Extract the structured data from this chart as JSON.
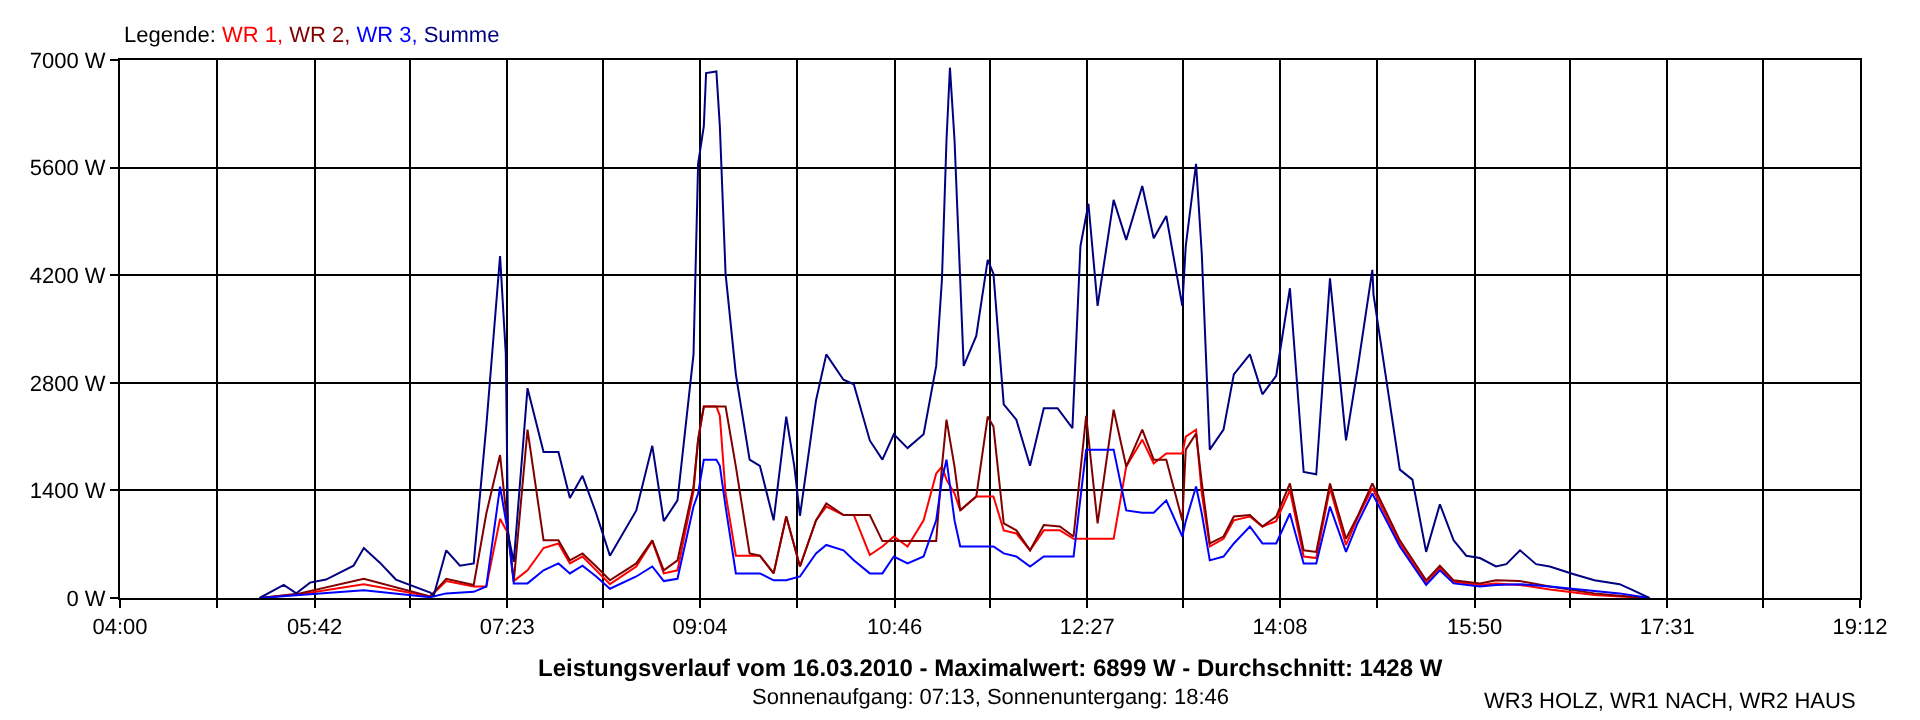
{
  "chart_data": {
    "type": "line",
    "title": "Leistungsverlauf vom 16.03.2010 - Maximalwert: 6899 W - Durchschnitt: 1428 W",
    "subtitle": "Sonnenaufgang: 07:13, Sonnenuntergang: 18:46",
    "legend_title": "Legende:",
    "legend": "top left",
    "grid": true,
    "marker": "none",
    "line_style": "solid",
    "annotations": [
      "WR3 HOLZ, WR1 NACH, WR2 HAUS"
    ],
    "xlim": [
      4,
      19.2
    ],
    "ylim": [
      0,
      7000
    ],
    "xticks": [
      {
        "value": 4,
        "label": "04:00"
      },
      {
        "value": 4.8444,
        "label": null
      },
      {
        "value": 5.7,
        "label": "05:42"
      },
      {
        "value": 6.5333,
        "label": null
      },
      {
        "value": 7.3833,
        "label": "07:23"
      },
      {
        "value": 8.2222,
        "label": null
      },
      {
        "value": 9.0667,
        "label": "09:04"
      },
      {
        "value": 9.9111,
        "label": null
      },
      {
        "value": 10.7667,
        "label": "10:46"
      },
      {
        "value": 11.6,
        "label": null
      },
      {
        "value": 12.45,
        "label": "12:27"
      },
      {
        "value": 13.2889,
        "label": null
      },
      {
        "value": 14.1333,
        "label": "14:08"
      },
      {
        "value": 14.9778,
        "label": null
      },
      {
        "value": 15.8333,
        "label": "15:50"
      },
      {
        "value": 16.6667,
        "label": null
      },
      {
        "value": 17.5167,
        "label": "17:31"
      },
      {
        "value": 18.3556,
        "label": null
      },
      {
        "value": 19.2,
        "label": "19:12"
      }
    ],
    "yticks": [
      {
        "value": 0,
        "label": "0 W"
      },
      {
        "value": 1400,
        "label": "1400 W"
      },
      {
        "value": 2800,
        "label": "2800 W"
      },
      {
        "value": 4200,
        "label": "4200 W"
      },
      {
        "value": 5600,
        "label": "5600 W"
      },
      {
        "value": 7000,
        "label": "7000 W"
      }
    ],
    "x": [
      5.22,
      5.57,
      6.13,
      6.71,
      6.85,
      7.09,
      7.2,
      7.32,
      7.39,
      7.44,
      7.56,
      7.7,
      7.83,
      7.93,
      8.04,
      8.16,
      8.28,
      8.51,
      8.65,
      8.75,
      8.87,
      9.01,
      9.05,
      9.1,
      9.21,
      9.24,
      9.29,
      9.38,
      9.5,
      9.59,
      9.71,
      9.82,
      9.94,
      10.08,
      10.17,
      10.32,
      10.41,
      10.55,
      10.66,
      10.76,
      10.88,
      11.02,
      11.13,
      11.18,
      11.22,
      11.29,
      11.34,
      11.48,
      11.58,
      11.63,
      11.72,
      11.83,
      11.95,
      12.07,
      12.21,
      12.33,
      12.44,
      12.54,
      12.68,
      12.79,
      12.93,
      13.03,
      13.14,
      13.28,
      13.31,
      13.4,
      13.45,
      13.52,
      13.64,
      13.73,
      13.87,
      13.98,
      14.1,
      14.22,
      14.34,
      14.45,
      14.57,
      14.71,
      14.81,
      14.94,
      15.18,
      15.41,
      15.53,
      15.65,
      15.88,
      16.02,
      16.23,
      16.49,
      16.88,
      17.1,
      17.36
    ],
    "series": [
      {
        "name": "WR 1,",
        "color": "#ff0000",
        "values": [
          0,
          50,
          180,
          20,
          220,
          150,
          150,
          1030,
          840,
          220,
          360,
          650,
          710,
          450,
          540,
          360,
          180,
          410,
          740,
          320,
          360,
          1390,
          2060,
          2490,
          2490,
          2370,
          1360,
          550,
          550,
          550,
          320,
          1060,
          410,
          1010,
          1190,
          1080,
          1080,
          560,
          670,
          800,
          670,
          1010,
          1620,
          1710,
          1540,
          1360,
          1140,
          1320,
          1320,
          1320,
          880,
          840,
          620,
          880,
          880,
          770,
          770,
          770,
          770,
          1710,
          2060,
          1750,
          1880,
          1880,
          2100,
          2190,
          1360,
          670,
          770,
          1010,
          1060,
          930,
          1000,
          1400,
          540,
          520,
          1430,
          690,
          1040,
          1430,
          710,
          190,
          390,
          210,
          170,
          190,
          170,
          110,
          40,
          20,
          0
        ]
      },
      {
        "name": "WR 2,",
        "color": "#800000",
        "values": [
          0,
          60,
          250,
          20,
          250,
          170,
          1100,
          1860,
          870,
          220,
          2190,
          750,
          750,
          490,
          580,
          410,
          230,
          450,
          750,
          360,
          490,
          1450,
          2060,
          2490,
          2490,
          2490,
          2490,
          1710,
          580,
          550,
          320,
          1060,
          410,
          1010,
          1230,
          1080,
          1080,
          1080,
          740,
          740,
          740,
          740,
          740,
          1710,
          2320,
          1710,
          1140,
          1320,
          2360,
          2230,
          970,
          880,
          620,
          950,
          930,
          800,
          2370,
          970,
          2450,
          1710,
          2190,
          1800,
          1800,
          1010,
          1930,
          2140,
          1500,
          710,
          800,
          1060,
          1080,
          930,
          1060,
          1490,
          620,
          600,
          1490,
          770,
          1060,
          1490,
          750,
          230,
          420,
          230,
          190,
          230,
          220,
          150,
          60,
          30,
          0
        ]
      },
      {
        "name": "WR 3,",
        "color": "#0000ff",
        "values": [
          0,
          40,
          100,
          10,
          60,
          80,
          150,
          1450,
          840,
          190,
          190,
          360,
          450,
          320,
          420,
          280,
          120,
          280,
          410,
          220,
          250,
          1190,
          1360,
          1800,
          1800,
          1720,
          1190,
          320,
          320,
          320,
          230,
          230,
          280,
          580,
          690,
          620,
          490,
          320,
          320,
          540,
          450,
          540,
          1010,
          1540,
          1800,
          1010,
          670,
          670,
          670,
          670,
          580,
          540,
          410,
          540,
          540,
          540,
          1930,
          1930,
          1930,
          1140,
          1110,
          1110,
          1270,
          800,
          1000,
          1450,
          1100,
          490,
          540,
          710,
          930,
          710,
          710,
          1100,
          450,
          450,
          1190,
          600,
          970,
          1360,
          670,
          170,
          360,
          190,
          150,
          170,
          180,
          150,
          90,
          60,
          0
        ]
      },
      {
        "name": "Summe",
        "color": "#000080",
        "x": [
          5.22,
          5.43,
          5.54,
          5.66,
          5.8,
          6.04,
          6.13,
          6.27,
          6.41,
          6.71,
          6.74,
          6.85,
          6.97,
          7.09,
          7.2,
          7.32,
          7.37,
          7.39,
          7.44,
          7.56,
          7.7,
          7.83,
          7.93,
          8.04,
          8.16,
          8.28,
          8.51,
          8.65,
          8.75,
          8.87,
          9.01,
          9.05,
          9.1,
          9.12,
          9.21,
          9.24,
          9.29,
          9.38,
          9.5,
          9.59,
          9.71,
          9.82,
          9.89,
          9.94,
          10.08,
          10.17,
          10.32,
          10.41,
          10.55,
          10.66,
          10.76,
          10.88,
          11.02,
          11.13,
          11.18,
          11.22,
          11.25,
          11.29,
          11.37,
          11.48,
          11.58,
          11.63,
          11.72,
          11.83,
          11.95,
          12.07,
          12.19,
          12.32,
          12.39,
          12.46,
          12.54,
          12.68,
          12.79,
          12.93,
          13.03,
          13.14,
          13.28,
          13.31,
          13.4,
          13.45,
          13.52,
          13.64,
          13.73,
          13.87,
          13.98,
          14.1,
          14.22,
          14.34,
          14.45,
          14.57,
          14.71,
          14.81,
          14.94,
          14.95,
          15.18,
          15.29,
          15.41,
          15.53,
          15.65,
          15.76,
          15.88,
          16.02,
          16.11,
          16.23,
          16.37,
          16.49,
          16.7,
          16.88,
          17.1,
          17.22,
          17.36
        ],
        "values": [
          0,
          170,
          60,
          200,
          240,
          420,
          650,
          460,
          240,
          70,
          30,
          620,
          420,
          450,
          2240,
          4450,
          3180,
          830,
          470,
          2730,
          1900,
          1900,
          1300,
          1590,
          1100,
          550,
          1140,
          1980,
          1000,
          1270,
          3170,
          5650,
          6140,
          6830,
          6850,
          6140,
          4220,
          2910,
          1800,
          1720,
          1010,
          2360,
          1720,
          1070,
          2570,
          3170,
          2840,
          2780,
          2050,
          1800,
          2130,
          1950,
          2130,
          3020,
          4140,
          5960,
          6900,
          5960,
          3020,
          3410,
          4400,
          4220,
          2520,
          2320,
          1720,
          2470,
          2470,
          2210,
          4580,
          5130,
          3800,
          5180,
          4660,
          5360,
          4680,
          4970,
          3800,
          4580,
          5650,
          4480,
          1930,
          2190,
          2910,
          3170,
          2650,
          2890,
          4030,
          1640,
          1610,
          4160,
          2050,
          2970,
          4270,
          3950,
          1670,
          1540,
          600,
          1220,
          750,
          550,
          520,
          410,
          440,
          620,
          440,
          410,
          310,
          230,
          180,
          100,
          0
        ]
      }
    ]
  }
}
